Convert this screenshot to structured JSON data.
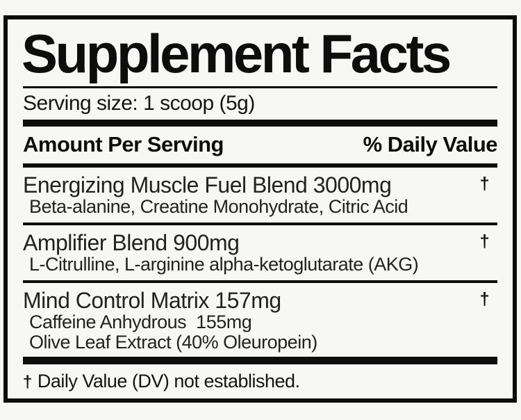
{
  "label": {
    "title": "Supplement Facts",
    "serving_size": "Serving size: 1 scoop (5g)",
    "header": {
      "amount": "Amount Per Serving",
      "daily_value": "% Daily Value"
    },
    "rows": [
      {
        "name": "Energizing Muscle Fuel Blend 3000mg",
        "daily_value": "†",
        "sub": [
          "Beta-alanine, Creatine Monohydrate, Citric Acid"
        ]
      },
      {
        "name": "Amplifier Blend 900mg",
        "daily_value": "†",
        "sub": [
          "L-Citrulline, L-arginine alpha-ketoglutarate (AKG)"
        ]
      },
      {
        "name": "Mind Control Matrix 157mg",
        "daily_value": "†",
        "sub": [
          "Caffeine Anhydrous  155mg",
          "Olive Leaf Extract (40% Oleuropein)"
        ]
      }
    ],
    "footnote": {
      "symbol": "†",
      "text": "Daily Value (DV) not established."
    }
  },
  "colors": {
    "background": "#f7f7f5",
    "text": "#111111",
    "border": "#0c0c0c"
  }
}
